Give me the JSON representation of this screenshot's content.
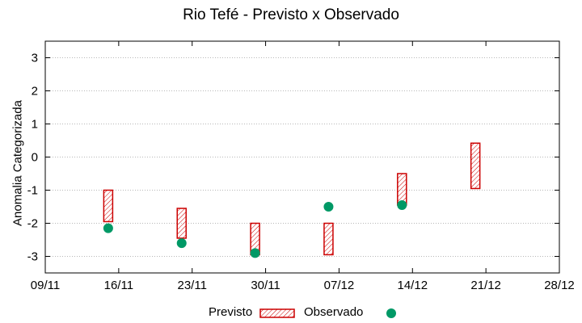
{
  "chart_data": {
    "type": "scatter",
    "title": "Rio Tefé - Previsto x Observado",
    "ylabel": "Anomalia Categorizada",
    "xlabel": "",
    "x_ticks": [
      "09/11",
      "16/11",
      "23/11",
      "30/11",
      "07/12",
      "14/12",
      "21/12",
      "28/12"
    ],
    "y_ticks": [
      3,
      2,
      1,
      0,
      -1,
      -2,
      -3
    ],
    "y_tick_labels": [
      "3",
      "2",
      "1",
      "0",
      "-1",
      "-2",
      "-3"
    ],
    "xlim": [
      "09/11",
      "28/12"
    ],
    "ylim": [
      -3.5,
      3.5
    ],
    "grid": true,
    "legend_position": "bottom",
    "series": [
      {
        "name": "Previsto",
        "kind": "range-box",
        "color": "#cc0000",
        "points": [
          {
            "x": "15/11",
            "low": -1.95,
            "high": -1.0
          },
          {
            "x": "22/11",
            "low": -2.45,
            "high": -1.55
          },
          {
            "x": "29/11",
            "low": -2.95,
            "high": -2.0
          },
          {
            "x": "06/12",
            "low": -2.95,
            "high": -2.0
          },
          {
            "x": "13/12",
            "low": -1.45,
            "high": -0.5
          },
          {
            "x": "20/12",
            "low": -0.95,
            "high": 0.42
          }
        ]
      },
      {
        "name": "Observado",
        "kind": "point",
        "color": "#009966",
        "points": [
          {
            "x": "15/11",
            "y": -2.15
          },
          {
            "x": "22/11",
            "y": -2.6
          },
          {
            "x": "29/11",
            "y": -2.9
          },
          {
            "x": "06/12",
            "y": -1.5
          },
          {
            "x": "13/12",
            "y": -1.45
          }
        ]
      }
    ]
  }
}
